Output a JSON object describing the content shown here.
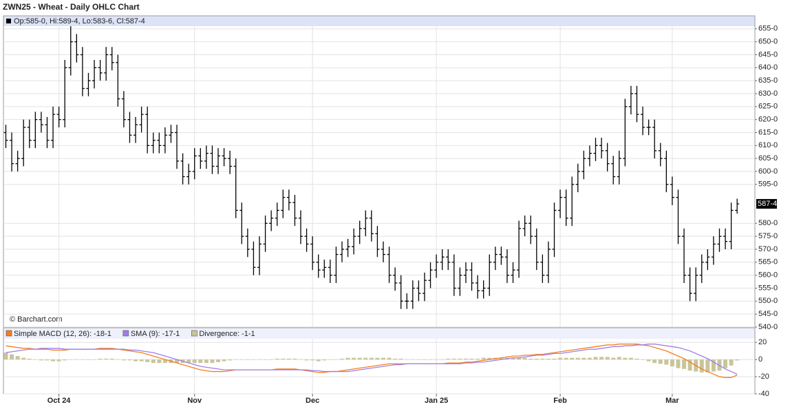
{
  "chart_data": [
    {
      "type": "ohlc",
      "title": "ZWN25 - Wheat - Daily OHLC Chart",
      "info": "Op:585-0, Hi:589-4, Lo:583-6, Cl:587-4",
      "watermark": "© Barchart.com",
      "color": "#000000",
      "grid": true,
      "open": [
        615,
        612,
        603,
        605,
        617,
        612,
        620,
        618,
        612,
        622,
        620,
        640,
        650,
        645,
        632,
        635,
        640,
        638,
        645,
        642,
        628,
        620,
        614,
        618,
        622,
        610,
        612,
        610,
        614,
        615,
        604,
        598,
        600,
        606,
        604,
        607,
        602,
        606,
        605,
        602,
        585,
        575,
        570,
        563,
        572,
        580,
        582,
        585,
        590,
        588,
        582,
        575,
        572,
        565,
        562,
        563,
        560,
        568,
        570,
        571,
        575,
        578,
        582,
        576,
        570,
        568,
        560,
        557,
        550,
        550,
        555,
        553,
        558,
        562,
        565,
        567,
        565,
        555,
        560,
        562,
        557,
        554,
        555,
        565,
        568,
        567,
        560,
        562,
        578,
        580,
        575,
        565,
        560,
        570,
        585,
        590,
        582,
        595,
        600,
        605,
        607,
        610,
        608,
        603,
        598,
        605,
        625,
        630,
        622,
        617,
        617,
        608,
        605,
        595,
        590,
        575,
        560,
        553,
        560,
        565,
        567,
        572,
        575,
        573,
        585
      ],
      "high": [
        618,
        615,
        608,
        620,
        620,
        623,
        623,
        621,
        625,
        625,
        643,
        656,
        653,
        648,
        638,
        643,
        643,
        648,
        648,
        645,
        631,
        623,
        621,
        625,
        625,
        615,
        615,
        617,
        618,
        618,
        607,
        603,
        609,
        609,
        610,
        610,
        609,
        609,
        608,
        605,
        588,
        578,
        573,
        575,
        583,
        585,
        588,
        593,
        593,
        591,
        585,
        578,
        575,
        568,
        566,
        566,
        571,
        573,
        574,
        578,
        581,
        585,
        585,
        579,
        573,
        571,
        563,
        560,
        553,
        558,
        558,
        561,
        565,
        568,
        570,
        570,
        568,
        563,
        565,
        565,
        560,
        558,
        568,
        571,
        571,
        570,
        565,
        581,
        583,
        583,
        578,
        568,
        573,
        588,
        593,
        593,
        598,
        603,
        608,
        610,
        613,
        613,
        611,
        606,
        608,
        628,
        633,
        633,
        625,
        620,
        620,
        611,
        608,
        598,
        593,
        578,
        563,
        563,
        568,
        570,
        575,
        578,
        578,
        588,
        589.5
      ],
      "low": [
        609,
        600,
        600,
        602,
        609,
        609,
        615,
        609,
        609,
        617,
        617,
        637,
        642,
        629,
        629,
        632,
        635,
        635,
        639,
        625,
        617,
        611,
        611,
        615,
        607,
        607,
        607,
        607,
        611,
        601,
        595,
        595,
        597,
        601,
        601,
        599,
        599,
        602,
        599,
        582,
        572,
        567,
        560,
        560,
        569,
        577,
        579,
        582,
        585,
        579,
        572,
        569,
        562,
        559,
        559,
        557,
        557,
        565,
        567,
        568,
        572,
        575,
        573,
        567,
        565,
        557,
        554,
        547,
        547,
        547,
        550,
        550,
        555,
        559,
        562,
        562,
        552,
        552,
        557,
        554,
        551,
        551,
        552,
        562,
        564,
        557,
        557,
        559,
        575,
        572,
        562,
        557,
        557,
        567,
        582,
        579,
        579,
        592,
        597,
        602,
        604,
        605,
        600,
        595,
        595,
        602,
        622,
        619,
        614,
        614,
        605,
        602,
        592,
        587,
        572,
        557,
        550,
        550,
        557,
        562,
        564,
        569,
        570,
        570,
        583.75
      ],
      "close": [
        612,
        603,
        605,
        617,
        612,
        620,
        618,
        612,
        622,
        620,
        640,
        650,
        645,
        632,
        635,
        640,
        638,
        645,
        642,
        628,
        620,
        614,
        618,
        622,
        610,
        612,
        610,
        614,
        615,
        604,
        598,
        600,
        606,
        604,
        607,
        602,
        606,
        605,
        602,
        585,
        575,
        570,
        563,
        572,
        580,
        582,
        585,
        590,
        588,
        582,
        575,
        572,
        565,
        562,
        563,
        560,
        568,
        570,
        571,
        575,
        578,
        582,
        576,
        570,
        568,
        560,
        557,
        550,
        550,
        555,
        553,
        558,
        562,
        565,
        567,
        565,
        555,
        560,
        562,
        557,
        554,
        555,
        565,
        568,
        567,
        560,
        562,
        578,
        580,
        575,
        565,
        560,
        570,
        585,
        590,
        582,
        595,
        600,
        605,
        607,
        610,
        608,
        603,
        598,
        605,
        625,
        630,
        622,
        617,
        617,
        608,
        605,
        595,
        590,
        575,
        560,
        553,
        560,
        565,
        567,
        572,
        575,
        573,
        585,
        587.5
      ],
      "ylim": [
        540,
        660
      ],
      "yticks": [
        {
          "value": 540,
          "label": "540-0"
        },
        {
          "value": 545,
          "label": "545-0"
        },
        {
          "value": 550,
          "label": "550-0"
        },
        {
          "value": 555,
          "label": "555-0"
        },
        {
          "value": 560,
          "label": "560-0"
        },
        {
          "value": 565,
          "label": "565-0"
        },
        {
          "value": 570,
          "label": "570-0"
        },
        {
          "value": 575,
          "label": "575-0"
        },
        {
          "value": 580,
          "label": "580-0"
        },
        {
          "value": 595,
          "label": "595-0"
        },
        {
          "value": 600,
          "label": "600-0"
        },
        {
          "value": 605,
          "label": "605-0"
        },
        {
          "value": 610,
          "label": "610-0"
        },
        {
          "value": 615,
          "label": "615-0"
        },
        {
          "value": 620,
          "label": "620-0"
        },
        {
          "value": 625,
          "label": "625-0"
        },
        {
          "value": 630,
          "label": "630-0"
        },
        {
          "value": 635,
          "label": "635-0"
        },
        {
          "value": 640,
          "label": "640-0"
        },
        {
          "value": 645,
          "label": "645-0"
        },
        {
          "value": 650,
          "label": "650-0"
        },
        {
          "value": 655,
          "label": "655-0"
        }
      ],
      "last_price": {
        "value": 587.5,
        "label": "587-4"
      }
    },
    {
      "type": "macd",
      "grid": true,
      "categories": [
        null,
        null,
        null,
        null,
        null,
        null,
        null,
        null,
        null,
        "Oct 24",
        null,
        null,
        null,
        null,
        null,
        null,
        null,
        null,
        null,
        null,
        null,
        null,
        null,
        null,
        null,
        null,
        null,
        null,
        null,
        null,
        null,
        null,
        "Nov",
        null,
        null,
        null,
        null,
        null,
        null,
        null,
        null,
        null,
        null,
        null,
        null,
        null,
        null,
        null,
        null,
        null,
        null,
        null,
        "Dec",
        null,
        null,
        null,
        null,
        null,
        null,
        null,
        null,
        null,
        null,
        null,
        null,
        null,
        null,
        null,
        null,
        null,
        null,
        null,
        null,
        "Jan 25",
        null,
        null,
        null,
        null,
        null,
        null,
        null,
        null,
        null,
        null,
        null,
        null,
        null,
        null,
        null,
        null,
        null,
        null,
        null,
        null,
        "Feb",
        null,
        null,
        null,
        null,
        null,
        null,
        null,
        null,
        null,
        null,
        null,
        null,
        null,
        null,
        null,
        null,
        null,
        null,
        "Mar",
        null,
        null,
        null,
        null,
        null,
        null,
        null,
        null,
        null,
        null,
        null
      ],
      "series": [
        {
          "name": "Simple MACD (12, 26): -18-1",
          "color": "#f57d1f",
          "style": "line",
          "values": [
            16,
            15,
            14,
            13,
            13,
            12,
            12,
            12,
            11,
            11,
            11,
            12,
            12,
            12,
            12,
            12,
            13,
            13,
            13,
            12,
            11,
            10,
            9,
            8,
            6,
            4,
            2,
            0,
            -2,
            -4,
            -6,
            -8,
            -10,
            -12,
            -13,
            -14,
            -14,
            -14,
            -13,
            -12,
            -12,
            -12,
            -12,
            -12,
            -12,
            -12,
            -11,
            -11,
            -11,
            -11,
            -12,
            -13,
            -14,
            -15,
            -15,
            -14,
            -14,
            -13,
            -12,
            -11,
            -10,
            -9,
            -8,
            -7,
            -6,
            -5,
            -5,
            -5,
            -5,
            -5,
            -5,
            -5,
            -5,
            -5,
            -5,
            -4,
            -4,
            -4,
            -3,
            -3,
            -2,
            -1,
            0,
            1,
            2,
            3,
            4,
            4,
            5,
            5,
            6,
            6,
            7,
            8,
            9,
            10,
            11,
            12,
            13,
            14,
            15,
            16,
            17,
            17,
            18,
            18,
            18,
            18,
            17,
            16,
            14,
            12,
            10,
            7,
            4,
            1,
            -3,
            -7,
            -11,
            -14,
            -17,
            -20,
            -21,
            -21,
            -18.125
          ]
        },
        {
          "name": "SMA (9): -17-1",
          "color": "#a07ee8",
          "style": "line",
          "values": [
            8,
            9,
            10,
            11,
            12,
            12,
            13,
            13,
            13,
            13,
            12,
            12,
            12,
            12,
            12,
            12,
            12,
            12,
            12,
            12,
            12,
            11,
            11,
            10,
            9,
            8,
            6,
            4,
            2,
            0,
            -2,
            -4,
            -6,
            -8,
            -9,
            -10,
            -11,
            -12,
            -12,
            -12,
            -12,
            -12,
            -12,
            -12,
            -12,
            -12,
            -12,
            -12,
            -12,
            -12,
            -12,
            -12,
            -13,
            -13,
            -14,
            -14,
            -14,
            -14,
            -14,
            -13,
            -12,
            -11,
            -10,
            -9,
            -8,
            -7,
            -6,
            -6,
            -5,
            -5,
            -5,
            -5,
            -5,
            -5,
            -5,
            -5,
            -5,
            -5,
            -4,
            -4,
            -3,
            -3,
            -2,
            -1,
            0,
            1,
            2,
            2,
            3,
            4,
            5,
            5,
            6,
            7,
            7,
            8,
            9,
            10,
            11,
            12,
            12,
            13,
            14,
            15,
            15,
            16,
            16,
            17,
            17,
            18,
            18,
            17,
            16,
            15,
            14,
            12,
            10,
            7,
            4,
            1,
            -3,
            -7,
            -11,
            -14,
            -17.125
          ]
        },
        {
          "name": "Divergence: -1-1",
          "color": "#c9c59a",
          "style": "bar",
          "values": [
            8,
            6,
            4,
            2,
            1,
            0,
            -1,
            -1,
            -2,
            -2,
            -1,
            0,
            0,
            0,
            0,
            0,
            1,
            1,
            1,
            0,
            -1,
            -1,
            -2,
            -2,
            -3,
            -4,
            -4,
            -4,
            -4,
            -4,
            -4,
            -4,
            -4,
            -4,
            -4,
            -4,
            -3,
            -2,
            -1,
            0,
            0,
            0,
            0,
            0,
            0,
            0,
            1,
            1,
            1,
            1,
            0,
            -1,
            -1,
            -2,
            -1,
            0,
            0,
            1,
            2,
            2,
            2,
            2,
            2,
            2,
            2,
            2,
            1,
            1,
            0,
            0,
            0,
            0,
            0,
            0,
            0,
            1,
            1,
            1,
            1,
            1,
            1,
            2,
            2,
            2,
            2,
            2,
            2,
            2,
            2,
            1,
            1,
            1,
            1,
            1,
            2,
            2,
            2,
            2,
            2,
            2,
            3,
            3,
            3,
            2,
            3,
            2,
            2,
            1,
            0,
            -2,
            -4,
            -5,
            -6,
            -8,
            -10,
            -11,
            -13,
            -14,
            -15,
            -15,
            -14,
            -13,
            -10,
            -7,
            -1.125
          ]
        }
      ],
      "ylim": [
        -40,
        37
      ],
      "yticks": [
        -40,
        -20,
        0,
        20
      ]
    }
  ]
}
